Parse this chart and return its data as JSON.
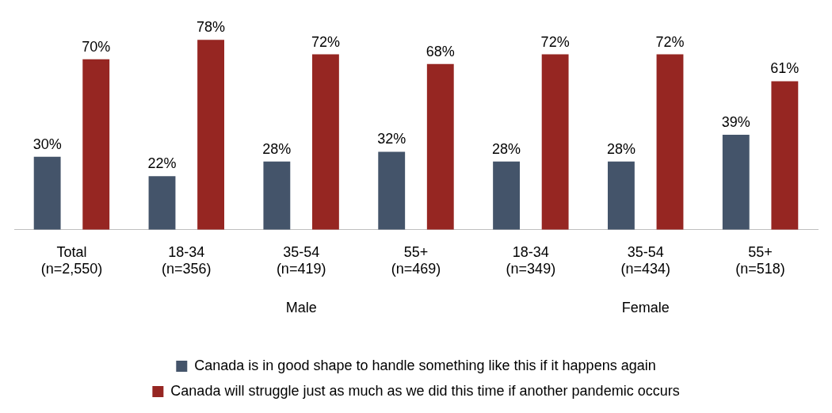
{
  "chart_data": {
    "type": "bar",
    "categories": [
      "Total\n(n=2,550)",
      "18-34\n(n=356)",
      "35-54\n(n=419)",
      "55+\n(n=469)",
      "18-34\n(n=349)",
      "35-54\n(n=434)",
      "55+\n(n=518)"
    ],
    "series": [
      {
        "name": "Canada is in good shape to handle something like this if it happens again",
        "color": "#44546a",
        "values": [
          30,
          22,
          28,
          32,
          28,
          28,
          39
        ],
        "value_labels": [
          "30%",
          "22%",
          "28%",
          "32%",
          "28%",
          "28%",
          "39%"
        ]
      },
      {
        "name": "Canada will struggle just as much as we did this time if another pandemic occurs",
        "color": "#962622",
        "values": [
          70,
          78,
          72,
          68,
          72,
          72,
          61
        ],
        "value_labels": [
          "70%",
          "78%",
          "72%",
          "68%",
          "72%",
          "72%",
          "61%"
        ]
      }
    ],
    "annotations": [
      "Male",
      "Female"
    ],
    "legend": "bottom",
    "grid": false
  }
}
